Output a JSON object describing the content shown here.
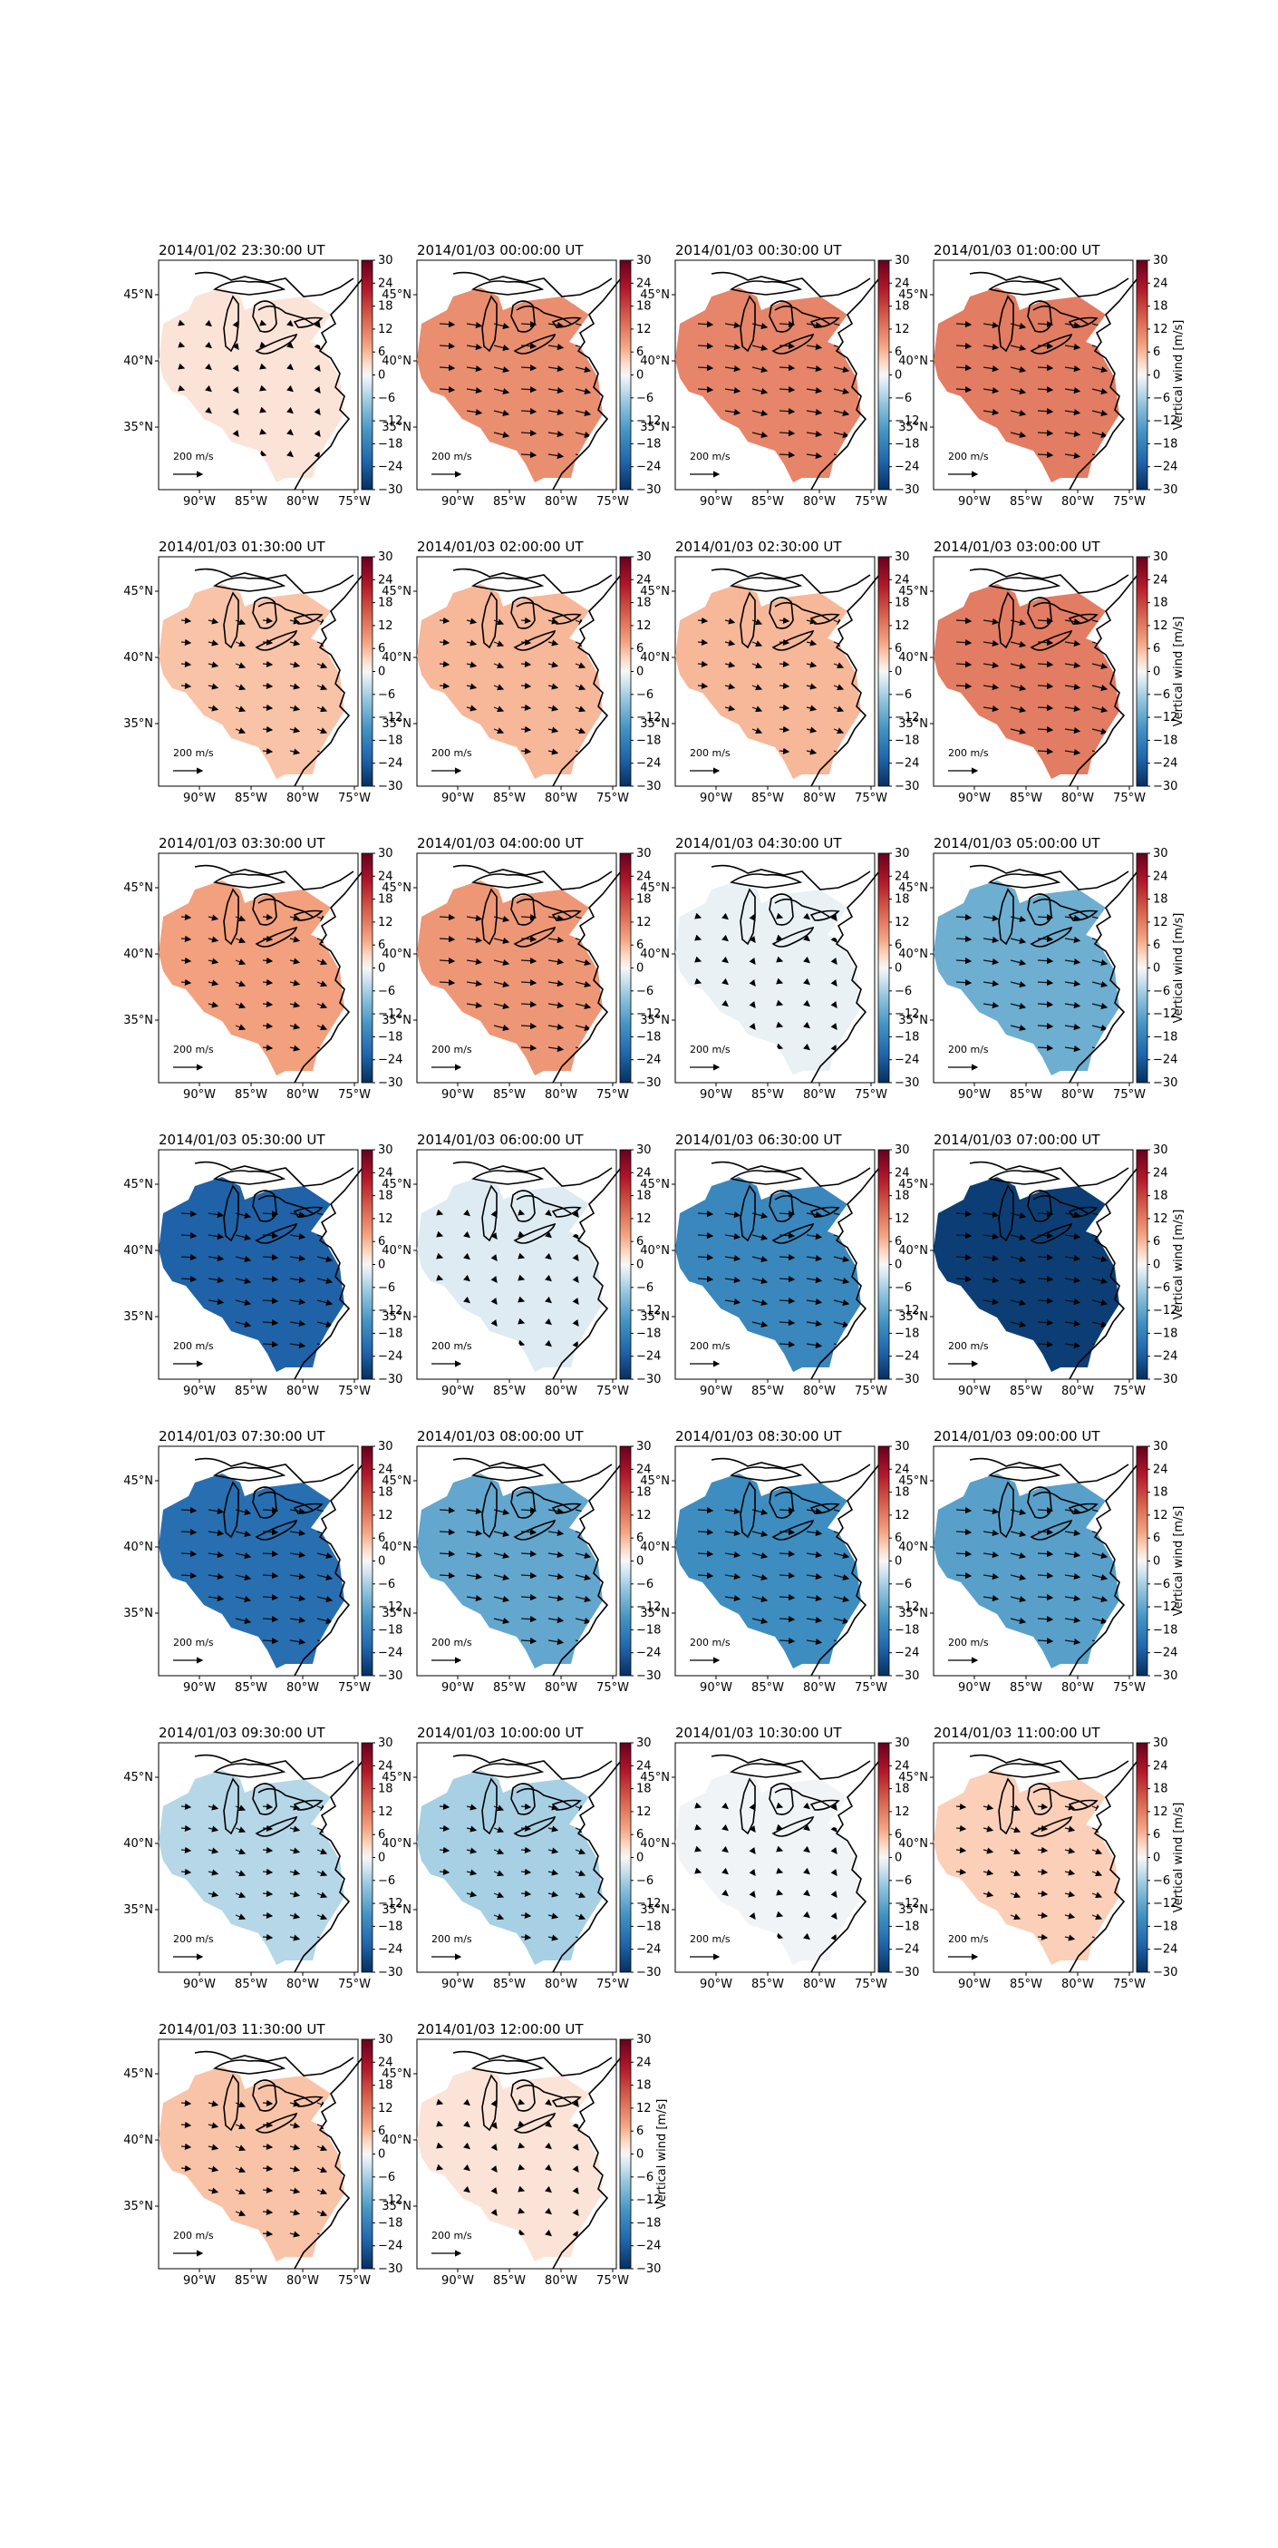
{
  "figure": {
    "colorbar_label": "Vertical wind [m/s]",
    "colorbar_ticks": [
      "30",
      "24",
      "18",
      "12",
      "6",
      "0",
      "−6",
      "−12",
      "−18",
      "−24",
      "−30"
    ],
    "lon_ticks": [
      "90°W",
      "85°W",
      "80°W",
      "75°W"
    ],
    "lat_ticks": [
      "45°N",
      "40°N",
      "35°N"
    ],
    "scale_arrow_label": "200 m/s",
    "colormap": {
      "name": "RdBu_r",
      "negative_end": "#053061",
      "center": "#f7f7f7",
      "positive_end": "#67001f"
    }
  },
  "chart_data": [
    {
      "type": "heatmap",
      "title": "2014/01/02 23:30:00 UT",
      "value": 2
    },
    {
      "type": "heatmap",
      "title": "2014/01/03 00:00:00 UT",
      "value": 10
    },
    {
      "type": "heatmap",
      "title": "2014/01/03 00:30:00 UT",
      "value": 11
    },
    {
      "type": "heatmap",
      "title": "2014/01/03 01:00:00 UT",
      "value": 12
    },
    {
      "type": "heatmap",
      "title": "2014/01/03 01:30:00 UT",
      "value": 5
    },
    {
      "type": "heatmap",
      "title": "2014/01/03 02:00:00 UT",
      "value": 6
    },
    {
      "type": "heatmap",
      "title": "2014/01/03 02:30:00 UT",
      "value": 6
    },
    {
      "type": "heatmap",
      "title": "2014/01/03 03:00:00 UT",
      "value": 12
    },
    {
      "type": "heatmap",
      "title": "2014/01/03 03:30:00 UT",
      "value": 8
    },
    {
      "type": "heatmap",
      "title": "2014/01/03 04:00:00 UT",
      "value": 9
    },
    {
      "type": "heatmap",
      "title": "2014/01/03 04:30:00 UT",
      "value": -1
    },
    {
      "type": "heatmap",
      "title": "2014/01/03 05:00:00 UT",
      "value": -11
    },
    {
      "type": "heatmap",
      "title": "2014/01/03 05:30:00 UT",
      "value": -23
    },
    {
      "type": "heatmap",
      "title": "2014/01/03 06:00:00 UT",
      "value": -2
    },
    {
      "type": "heatmap",
      "title": "2014/01/03 06:30:00 UT",
      "value": -17
    },
    {
      "type": "heatmap",
      "title": "2014/01/03 07:00:00 UT",
      "value": -28
    },
    {
      "type": "heatmap",
      "title": "2014/01/03 07:30:00 UT",
      "value": -21
    },
    {
      "type": "heatmap",
      "title": "2014/01/03 08:00:00 UT",
      "value": -12
    },
    {
      "type": "heatmap",
      "title": "2014/01/03 08:30:00 UT",
      "value": -16
    },
    {
      "type": "heatmap",
      "title": "2014/01/03 09:00:00 UT",
      "value": -13
    },
    {
      "type": "heatmap",
      "title": "2014/01/03 09:30:00 UT",
      "value": -5
    },
    {
      "type": "heatmap",
      "title": "2014/01/03 10:00:00 UT",
      "value": -6
    },
    {
      "type": "heatmap",
      "title": "2014/01/03 10:30:00 UT",
      "value": -0.5
    },
    {
      "type": "heatmap",
      "title": "2014/01/03 11:00:00 UT",
      "value": 4
    },
    {
      "type": "heatmap",
      "title": "2014/01/03 11:30:00 UT",
      "value": 5
    },
    {
      "type": "heatmap",
      "title": "2014/01/03 12:00:00 UT",
      "value": 2
    }
  ]
}
